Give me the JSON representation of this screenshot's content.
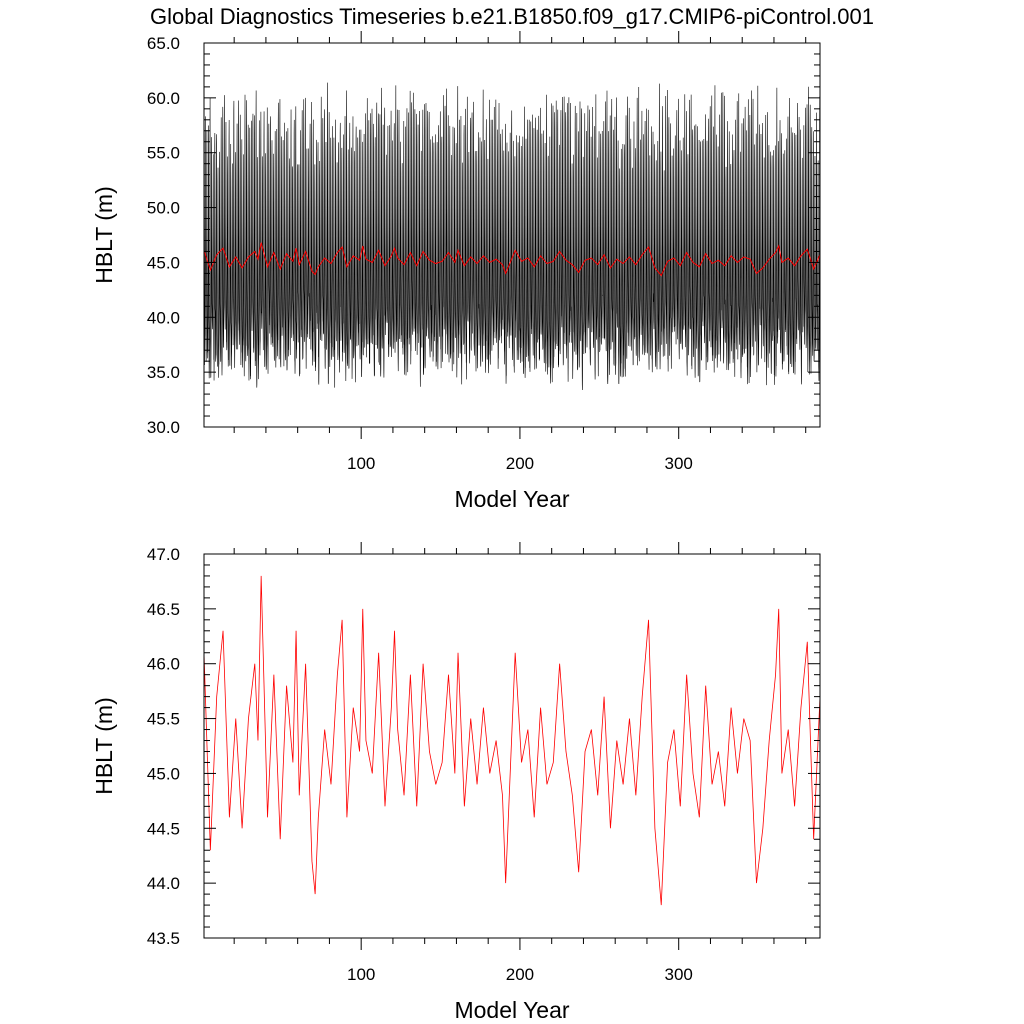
{
  "title": "Global Diagnostics Timeseries b.e21.B1850.f09_g17.CMIP6-piControl.001",
  "colors": {
    "monthly": "#000000",
    "annual": "#ff0000"
  },
  "chart_data": [
    {
      "type": "line",
      "xlabel": "Model Year",
      "ylabel": "HBLT (m)",
      "xlim": [
        1,
        389
      ],
      "ylim": [
        30.0,
        65.0
      ],
      "xticks": [
        100,
        200,
        300
      ],
      "xtick_labels": [
        "100",
        "200",
        "300"
      ],
      "yticks": [
        30.0,
        35.0,
        40.0,
        45.0,
        50.0,
        55.0,
        60.0,
        65.0
      ],
      "ytick_labels": [
        "30.0",
        "35.0",
        "40.0",
        "45.0",
        "50.0",
        "55.0",
        "60.0",
        "65.0"
      ],
      "grid": false,
      "series": [
        {
          "style": "monthly mean (black, dense seasonal cycle)",
          "color": "#000000",
          "x_start": 1,
          "x_step": 0.08333,
          "seasonal_min_range": [
            34.5,
            39.0
          ],
          "seasonal_max_range": [
            54.5,
            60.6
          ],
          "monthly_profile": [
            42,
            40,
            38.5,
            37.5,
            37.3,
            38.5,
            41,
            45,
            50,
            55.5,
            58,
            50
          ]
        },
        {
          "style": "annual mean (red)",
          "color": "#ff0000",
          "source": "same as lower panel annual values"
        }
      ]
    },
    {
      "type": "line",
      "xlabel": "Model Year",
      "ylabel": "HBLT (m)",
      "xlim": [
        1,
        389
      ],
      "ylim": [
        43.5,
        47.0
      ],
      "xticks": [
        100,
        200,
        300
      ],
      "xtick_labels": [
        "100",
        "200",
        "300"
      ],
      "yticks": [
        43.5,
        44.0,
        44.5,
        45.0,
        45.5,
        46.0,
        46.5,
        47.0
      ],
      "ytick_labels": [
        "43.5",
        "44.0",
        "44.5",
        "45.0",
        "45.5",
        "46.0",
        "46.5",
        "47.0"
      ],
      "grid": false,
      "series": [
        {
          "style": "annual mean",
          "color": "#ff0000",
          "x": [
            1,
            5,
            9,
            13,
            17,
            21,
            25,
            29,
            33,
            35,
            37,
            41,
            45,
            49,
            53,
            57,
            59,
            61,
            65,
            69,
            71,
            73,
            77,
            81,
            85,
            88,
            91,
            95,
            99,
            101,
            103,
            107,
            111,
            115,
            119,
            121,
            123,
            127,
            131,
            135,
            139,
            143,
            147,
            151,
            155,
            159,
            161,
            165,
            169,
            173,
            177,
            181,
            185,
            189,
            191,
            193,
            197,
            201,
            205,
            209,
            213,
            217,
            221,
            225,
            229,
            233,
            237,
            241,
            245,
            249,
            253,
            257,
            261,
            265,
            269,
            273,
            277,
            281,
            285,
            289,
            293,
            297,
            301,
            305,
            309,
            313,
            317,
            321,
            325,
            329,
            333,
            337,
            341,
            345,
            349,
            353,
            357,
            361,
            363,
            365,
            369,
            373,
            377,
            381,
            385,
            389
          ],
          "values": [
            46.1,
            44.3,
            45.7,
            46.3,
            44.6,
            45.5,
            44.5,
            45.5,
            46.0,
            45.3,
            46.8,
            44.6,
            45.9,
            44.4,
            45.8,
            45.1,
            46.3,
            44.8,
            46.0,
            44.2,
            43.9,
            44.6,
            45.4,
            44.9,
            45.9,
            46.4,
            44.6,
            45.6,
            45.2,
            46.5,
            45.3,
            45.0,
            46.1,
            44.7,
            45.6,
            46.3,
            45.4,
            44.8,
            45.9,
            44.7,
            46.0,
            45.2,
            44.9,
            45.1,
            45.9,
            45.0,
            46.1,
            44.7,
            45.5,
            44.9,
            45.6,
            45.0,
            45.3,
            44.8,
            44.0,
            44.7,
            46.1,
            45.1,
            45.4,
            44.6,
            45.6,
            44.9,
            45.1,
            46.0,
            45.2,
            44.8,
            44.1,
            45.2,
            45.4,
            44.8,
            45.7,
            44.5,
            45.3,
            44.9,
            45.5,
            44.8,
            45.7,
            46.4,
            44.5,
            43.8,
            45.1,
            45.4,
            44.7,
            45.9,
            45.0,
            44.6,
            45.8,
            44.9,
            45.2,
            44.7,
            45.6,
            45.0,
            45.5,
            45.3,
            44.0,
            44.5,
            45.3,
            45.9,
            46.5,
            45.0,
            45.4,
            44.7,
            45.6,
            46.2,
            44.4,
            45.7
          ]
        }
      ]
    }
  ]
}
